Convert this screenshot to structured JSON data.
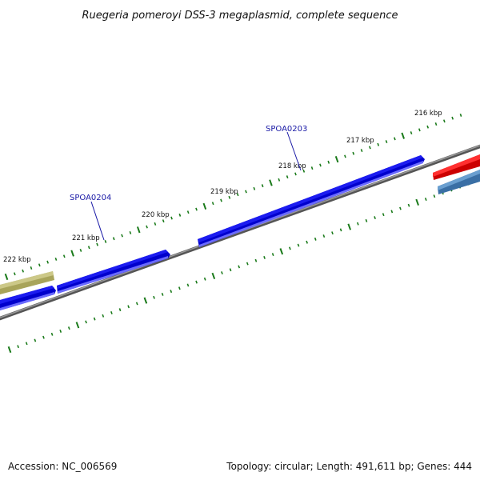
{
  "title": "Ruegeria pomeroyi DSS-3 megaplasmid, complete sequence",
  "ticks": [
    {
      "label": "216 kbp"
    },
    {
      "label": "217 kbp"
    },
    {
      "label": "218 kbp"
    },
    {
      "label": "219 kbp"
    },
    {
      "label": "220 kbp"
    },
    {
      "label": "221 kbp"
    },
    {
      "label": "222 kbp"
    }
  ],
  "genes": [
    {
      "name": "SPOA0203"
    },
    {
      "name": "SPOA0204"
    }
  ],
  "colors": {
    "forward_gene": "#1010e6",
    "forward_gene_shadow": "#8080ff",
    "reverse_gene_red": "#ee1111",
    "reverse_gene_steel": "#4a7fb5",
    "olive_feature": "#b8b46a",
    "backbone": "#7a7a7a",
    "tick": "#1a7a1a"
  },
  "footer": {
    "accession": "Accession: NC_006569",
    "summary": "Topology: circular; Length: 491,611 bp; Genes: 444"
  }
}
